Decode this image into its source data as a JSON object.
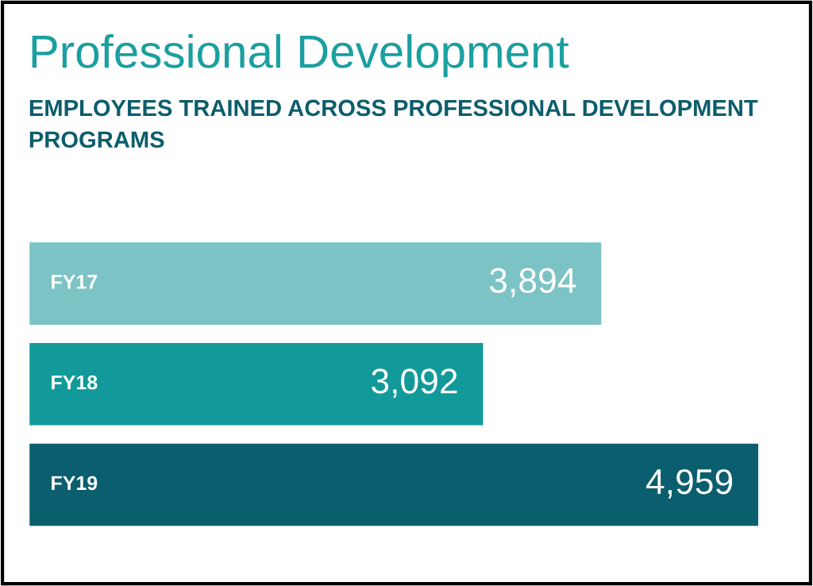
{
  "chart_data": {
    "type": "bar",
    "orientation": "horizontal",
    "title": "Professional Development",
    "subtitle": "EMPLOYEES TRAINED ACROSS PROFESSIONAL DEVELOPMENT PROGRAMS",
    "categories": [
      "FY17",
      "FY18",
      "FY19"
    ],
    "values": [
      3894,
      3092,
      4959
    ],
    "value_labels": [
      "3,894",
      "3,092",
      "4,959"
    ],
    "colors": [
      "#7cc3c5",
      "#12999a",
      "#0a5e6d"
    ],
    "tick_labels": false
  }
}
